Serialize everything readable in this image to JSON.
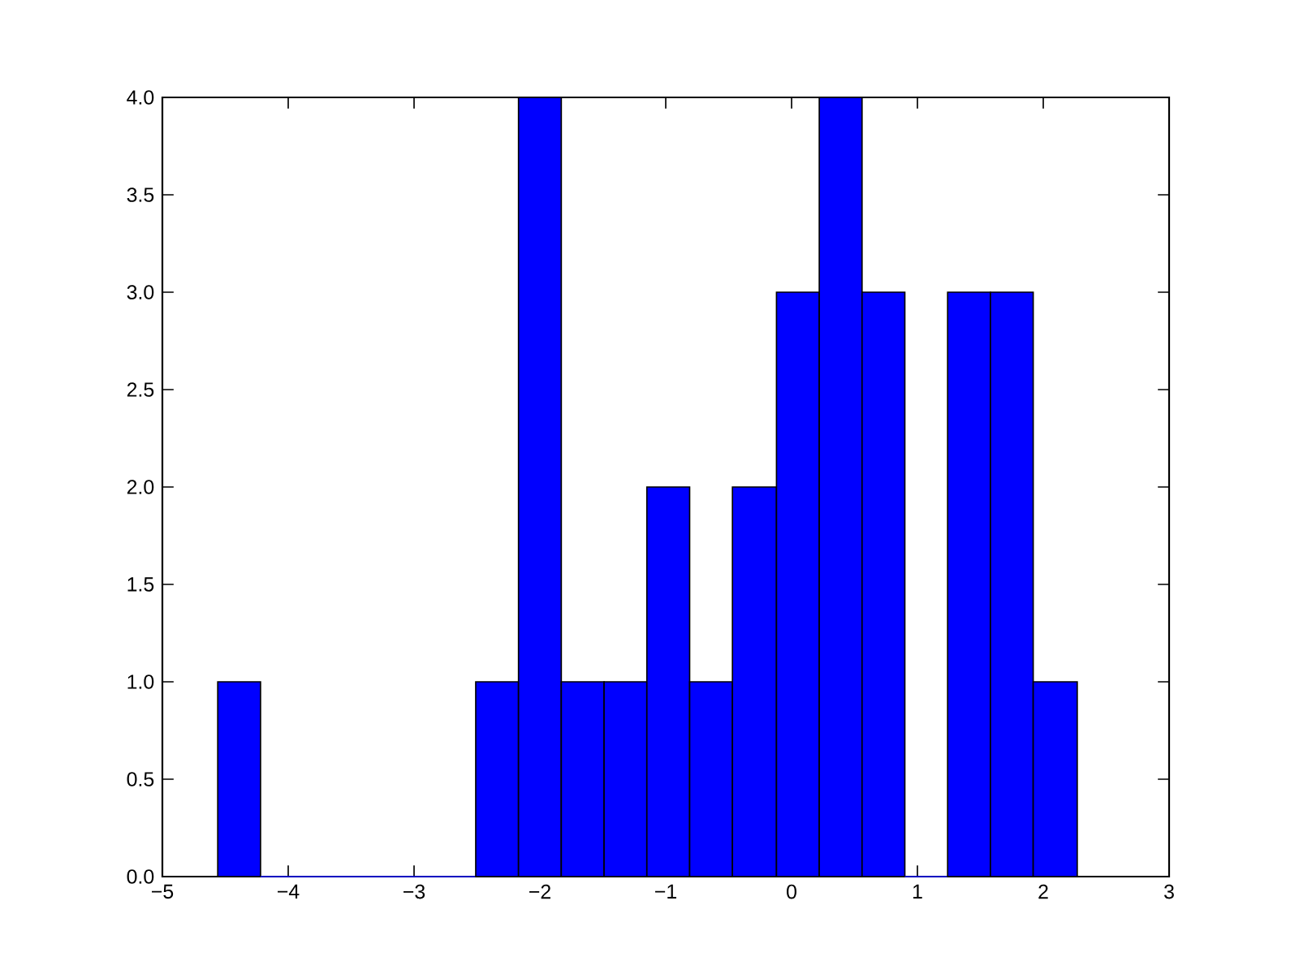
{
  "chart_data": {
    "type": "histogram",
    "bins": [
      -4.56,
      -4.22,
      -2.51,
      -2.17,
      -1.83,
      -1.49,
      -1.15,
      -0.81,
      -0.47,
      -0.12,
      0.22,
      0.56,
      0.9,
      1.24,
      1.58,
      1.92,
      2.27
    ],
    "values": [
      1,
      0,
      1,
      4,
      1,
      1,
      2,
      1,
      2,
      3,
      4,
      3,
      0,
      3,
      3,
      1
    ],
    "color": "#0000ff",
    "xlim": [
      -5,
      3
    ],
    "ylim": [
      0,
      4
    ],
    "xticks": [
      {
        "value": -5,
        "label": "−5"
      },
      {
        "value": -4,
        "label": "−4"
      },
      {
        "value": -3,
        "label": "−3"
      },
      {
        "value": -2,
        "label": "−2"
      },
      {
        "value": -1,
        "label": "−1"
      },
      0,
      1,
      2,
      3
    ],
    "yticks": [
      {
        "value": 0,
        "label": "0.0"
      },
      {
        "value": 0.5,
        "label": "0.5"
      },
      {
        "value": 1,
        "label": "1.0"
      },
      {
        "value": 1.5,
        "label": "1.5"
      },
      {
        "value": 2,
        "label": "2.0"
      },
      {
        "value": 2.5,
        "label": "2.5"
      },
      {
        "value": 3,
        "label": "3.0"
      },
      {
        "value": 3.5,
        "label": "3.5"
      },
      {
        "value": 4,
        "label": "4.0"
      }
    ]
  }
}
